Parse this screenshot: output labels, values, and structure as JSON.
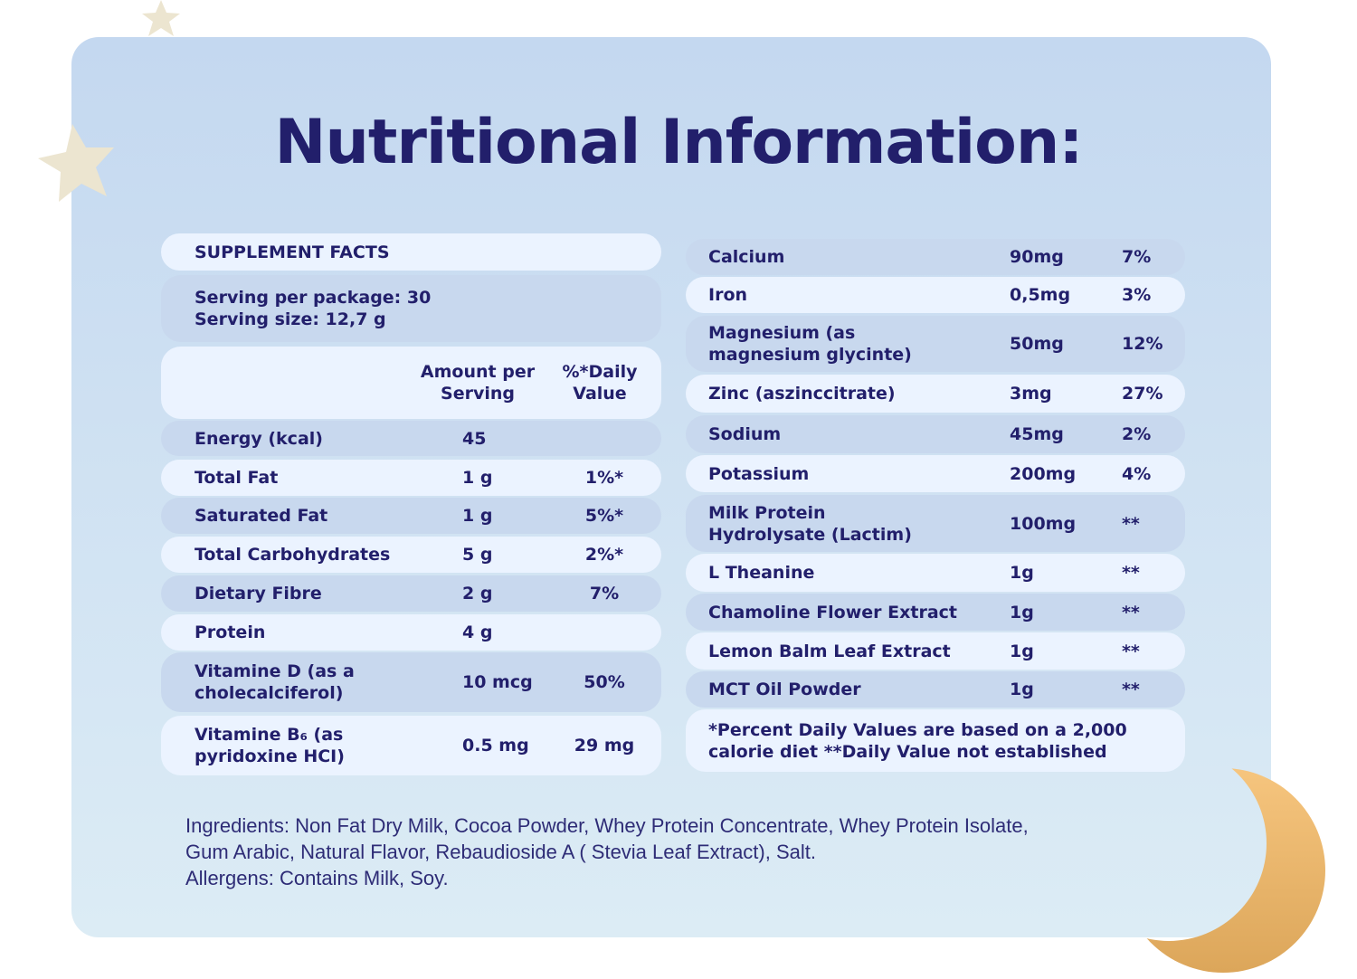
{
  "title": "Nutritional Information:",
  "supplement_header": "SUPPLEMENT FACTS",
  "serving_per_package": "Serving per package: 30",
  "serving_size": "Serving size: 12,7 g",
  "col_amount": "Amount per\nServing",
  "col_dv": "%*Daily\nValue",
  "left_rows": [
    {
      "name": "Energy (kcal)",
      "amount": "45",
      "dv": ""
    },
    {
      "name": "Total Fat",
      "amount": "1 g",
      "dv": "1%*"
    },
    {
      "name": "Saturated Fat",
      "amount": "1 g",
      "dv": "5%*"
    },
    {
      "name": "Total Carbohydrates",
      "amount": "5 g",
      "dv": "2%*"
    },
    {
      "name": "Dietary Fibre",
      "amount": "2 g",
      "dv": "7%"
    },
    {
      "name": "Protein",
      "amount": "4 g",
      "dv": ""
    },
    {
      "name": "Vitamine D (as a\ncholecalciferol)",
      "amount": "10 mcg",
      "dv": "50%"
    },
    {
      "name": "Vitamine B₆ (as\npyridoxine HCI)",
      "amount": "0.5 mg",
      "dv": "29 mg"
    }
  ],
  "right_rows": [
    {
      "name": "Calcium",
      "amount": "90mg",
      "dv": "7%"
    },
    {
      "name": "Iron",
      "amount": "0,5mg",
      "dv": "3%"
    },
    {
      "name": "Magnesium (as\nmagnesium glycinte)",
      "amount": "50mg",
      "dv": "12%"
    },
    {
      "name": "Zinc (aszinccitrate)",
      "amount": "3mg",
      "dv": "27%"
    },
    {
      "name": "Sodium",
      "amount": "45mg",
      "dv": "2%"
    },
    {
      "name": "Potassium",
      "amount": "200mg",
      "dv": "4%"
    },
    {
      "name": "Milk Protein\nHydrolysate (Lactim)",
      "amount": "100mg",
      "dv": "**"
    },
    {
      "name": "L Theanine",
      "amount": "1g",
      "dv": "**"
    },
    {
      "name": "Chamoline Flower Extract",
      "amount": "1g",
      "dv": "**"
    },
    {
      "name": "Lemon Balm Leaf Extract",
      "amount": "1g",
      "dv": "**"
    },
    {
      "name": "MCT Oil Powder",
      "amount": "1g",
      "dv": "**"
    }
  ],
  "footnote": "*Percent Daily Values are based on a 2,000\ncalorie diet **Daily Value not established",
  "ingredients": "Ingredients: Non Fat Dry Milk, Cocoa Powder, Whey Protein Concentrate, Whey Protein Isolate,\nGum Arabic, Natural Flavor, Rebaudioside A ( Stevia Leaf Extract), Salt.",
  "allergens": "Allergens: Contains Milk, Soy.",
  "colors": {
    "text": "#221f6b",
    "row_dark": "#c8d8ee",
    "row_light": "#ebf3ff",
    "star": "#ece5d0",
    "moon_top": "#f6c57e",
    "moon_bottom": "#dca65a"
  }
}
